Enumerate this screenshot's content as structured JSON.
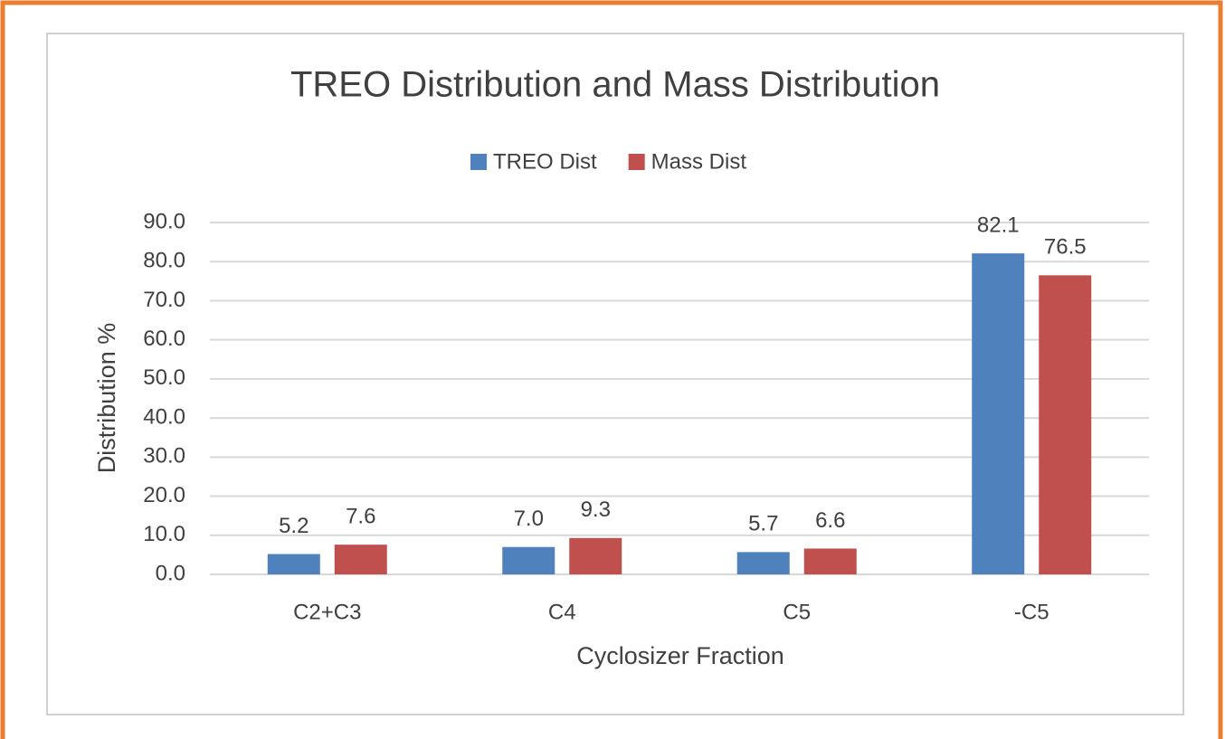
{
  "chart_data": {
    "type": "bar",
    "title": "TREO Distribution and Mass Distribution",
    "x_label": "Cyclosizer Fraction",
    "y_label": "Distribution %",
    "categories": [
      "C2+C3",
      "C4",
      "C5",
      "-C5"
    ],
    "series": [
      {
        "name": "TREO Dist",
        "color": "#4f81bd",
        "values": [
          5.2,
          7.0,
          5.7,
          82.1
        ],
        "value_labels": [
          "5.2",
          "7.0",
          "5.7",
          "82.1"
        ]
      },
      {
        "name": "Mass Dist",
        "color": "#c0504d",
        "values": [
          7.6,
          9.3,
          6.6,
          76.5
        ],
        "value_labels": [
          "7.6",
          "9.3",
          "6.6",
          "76.5"
        ]
      }
    ],
    "ylim": [
      0,
      90
    ],
    "yticks": [
      {
        "value": 0,
        "label": "0.0"
      },
      {
        "value": 10,
        "label": "10.0"
      },
      {
        "value": 20,
        "label": "20.0"
      },
      {
        "value": 30,
        "label": "30.0"
      },
      {
        "value": 40,
        "label": "40.0"
      },
      {
        "value": 50,
        "label": "50.0"
      },
      {
        "value": 60,
        "label": "60.0"
      },
      {
        "value": 70,
        "label": "70.0"
      },
      {
        "value": 80,
        "label": "80.0"
      },
      {
        "value": 90,
        "label": "90.0"
      }
    ],
    "grid": true,
    "legend": "top"
  }
}
